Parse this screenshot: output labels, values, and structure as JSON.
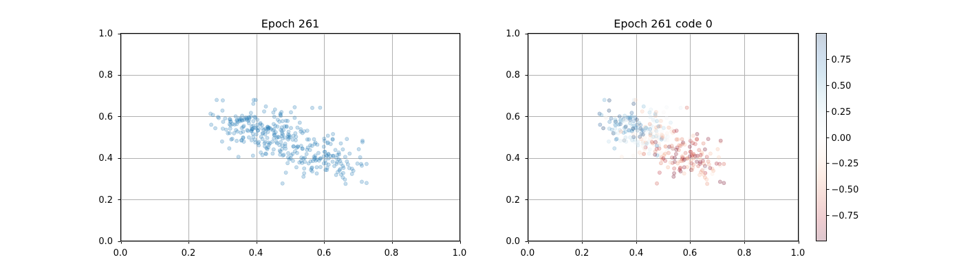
{
  "chart_data": [
    {
      "type": "scatter",
      "title": "Epoch 261",
      "xlabel": "",
      "ylabel": "",
      "xlim": [
        0,
        1
      ],
      "ylim": [
        0,
        1
      ],
      "xticks": [
        "0.0",
        "0.2",
        "0.4",
        "0.6",
        "0.8",
        "1.0"
      ],
      "yticks": [
        "0.0",
        "0.2",
        "0.4",
        "0.6",
        "0.8",
        "1.0"
      ],
      "grid": true,
      "marker_color": "#1f77b4",
      "marker_alpha": 0.25,
      "points": []
    },
    {
      "type": "scatter",
      "title": "Epoch 261 code 0",
      "xlabel": "",
      "ylabel": "",
      "xlim": [
        0,
        1
      ],
      "ylim": [
        0,
        1
      ],
      "xticks": [
        "0.0",
        "0.2",
        "0.4",
        "0.6",
        "0.8",
        "1.0"
      ],
      "yticks": [
        "0.0",
        "0.2",
        "0.4",
        "0.6",
        "0.8",
        "1.0"
      ],
      "grid": true,
      "colormap": "RdBu",
      "marker_alpha": 0.25,
      "colorbar": {
        "range": [
          -1,
          1
        ],
        "ticks": [
          "0.75",
          "0.50",
          "0.25",
          "0.00",
          "−0.25",
          "−0.50",
          "−0.75"
        ],
        "tick_values": [
          0.75,
          0.5,
          0.25,
          0.0,
          -0.25,
          -0.5,
          -0.75
        ]
      },
      "points": []
    }
  ]
}
